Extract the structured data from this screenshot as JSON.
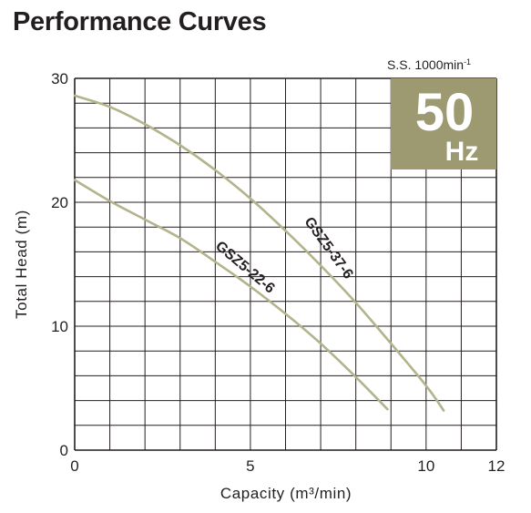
{
  "title": "Performance Curves",
  "speed_label": "S.S. 1000min",
  "speed_sup": "-1",
  "frequency": {
    "value": "50",
    "unit": "Hz",
    "badge_color": "#9d9971"
  },
  "colors": {
    "curve": "#b3b38c",
    "grid": "#231f20"
  },
  "chart_data": {
    "type": "line",
    "xlabel": "Capacity (m³/min)",
    "ylabel": "Total Head (m)",
    "xlim": [
      0,
      12
    ],
    "ylim": [
      0,
      30
    ],
    "x_ticks": [
      "0",
      "5",
      "10",
      "12"
    ],
    "y_ticks": [
      "0",
      "10",
      "20",
      "30"
    ],
    "grid": true,
    "series": [
      {
        "name": "GSZ5-37-6",
        "x": [
          0,
          1,
          2,
          3,
          4,
          5,
          6,
          7,
          8,
          9,
          10,
          10.5
        ],
        "y": [
          28.6,
          27.7,
          26.3,
          24.6,
          22.6,
          20.3,
          17.7,
          14.9,
          11.9,
          8.6,
          5.2,
          3.2
        ]
      },
      {
        "name": "GSZ5-22-6",
        "x": [
          0,
          1,
          2,
          3,
          4,
          5,
          6,
          7,
          8,
          8.9
        ],
        "y": [
          21.8,
          20.1,
          18.6,
          17.1,
          15.2,
          13.2,
          11.0,
          8.6,
          5.9,
          3.3
        ]
      }
    ]
  }
}
